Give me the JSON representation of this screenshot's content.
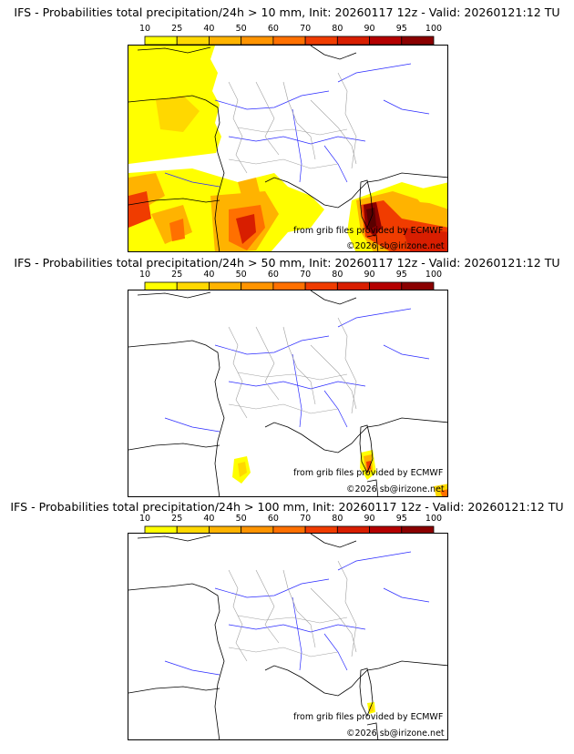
{
  "colorbar": {
    "ticks": [
      "10",
      "25",
      "40",
      "50",
      "60",
      "70",
      "80",
      "90",
      "95",
      "100"
    ],
    "colors": [
      "#ffff00",
      "#ffd800",
      "#ffb300",
      "#ff9400",
      "#ff7000",
      "#f03c00",
      "#d81e00",
      "#b40000",
      "#8a0000",
      "#5a0000"
    ]
  },
  "panels": [
    {
      "title": "IFS - Probabilities total precipitation/24h > 10 mm, Init: 20260117 12z - Valid: 20260121:12 TU",
      "credit_source": "from grib files provided by ECMWF",
      "credit_copyright": "©2026 sb@irizone.net"
    },
    {
      "title": "IFS - Probabilities total precipitation/24h > 50 mm, Init: 20260117 12z - Valid: 20260121:12 TU",
      "credit_source": "from grib files provided by ECMWF",
      "credit_copyright": "©2026 sb@irizone.net"
    },
    {
      "title": "IFS - Probabilities total precipitation/24h > 100 mm, Init: 20260117 12z - Valid: 20260121:12 TU",
      "credit_source": "from grib files provided by ECMWF",
      "credit_copyright": "©2026 sb@irizone.net"
    }
  ],
  "map_style": {
    "coast": "#000000",
    "rivers": "#2a2aff",
    "borders": "#a0a0a0"
  }
}
